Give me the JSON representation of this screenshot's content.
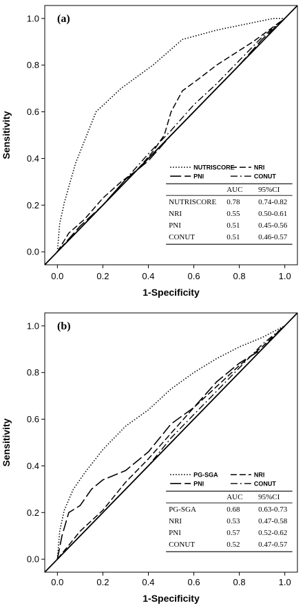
{
  "chart_data": [
    {
      "type": "line",
      "panel_label": "(a)",
      "xlabel": "1-Specificity",
      "ylabel": "Sensitivity",
      "xlim": [
        0,
        1
      ],
      "ylim": [
        0,
        1
      ],
      "xticks": [
        "0.0",
        "0.2",
        "0.4",
        "0.6",
        "0.8",
        "1.0"
      ],
      "yticks": [
        "0.0",
        "0.2",
        "0.4",
        "0.6",
        "0.8",
        "1.0"
      ],
      "grid": false,
      "diagonal_reference": true,
      "legend_position": "bottom-right",
      "series": [
        {
          "name": "NUTRISCORE",
          "style": "dotted",
          "x": [
            0,
            0.01,
            0.03,
            0.08,
            0.17,
            0.28,
            0.42,
            0.55,
            0.7,
            0.85,
            0.95,
            1.0
          ],
          "y": [
            0,
            0.12,
            0.21,
            0.38,
            0.6,
            0.7,
            0.8,
            0.91,
            0.95,
            0.98,
            1.0,
            1.0
          ]
        },
        {
          "name": "NRI",
          "style": "dashed",
          "x": [
            0,
            0.05,
            0.12,
            0.2,
            0.28,
            0.35,
            0.42,
            0.47,
            0.5,
            0.55,
            0.62,
            0.7,
            0.78,
            0.86,
            0.93,
            1.0
          ],
          "y": [
            0,
            0.08,
            0.14,
            0.23,
            0.3,
            0.35,
            0.43,
            0.5,
            0.6,
            0.69,
            0.74,
            0.8,
            0.85,
            0.9,
            0.95,
            1.0
          ]
        },
        {
          "name": "PNI",
          "style": "long-dash",
          "x": [
            0,
            0.1,
            0.2,
            0.3,
            0.4,
            0.5,
            0.6,
            0.7,
            0.8,
            0.9,
            1.0
          ],
          "y": [
            0,
            0.11,
            0.2,
            0.31,
            0.39,
            0.5,
            0.6,
            0.7,
            0.8,
            0.91,
            1.0
          ]
        },
        {
          "name": "CONUT",
          "style": "dash-dot",
          "x": [
            0,
            0.1,
            0.2,
            0.3,
            0.4,
            0.5,
            0.6,
            0.7,
            0.8,
            0.9,
            1.0
          ],
          "y": [
            0,
            0.1,
            0.2,
            0.31,
            0.42,
            0.52,
            0.63,
            0.72,
            0.82,
            0.92,
            1.0
          ]
        }
      ],
      "table": {
        "headers": [
          "",
          "AUC",
          "95%CI"
        ],
        "rows": [
          [
            "NUTRISCORE",
            "0.78",
            "0.74-0.82"
          ],
          [
            "NRI",
            "0.55",
            "0.50-0.61"
          ],
          [
            "PNI",
            "0.51",
            "0.45-0.56"
          ],
          [
            "CONUT",
            "0.51",
            "0.46-0.57"
          ]
        ]
      }
    },
    {
      "type": "line",
      "panel_label": "(b)",
      "xlabel": "1-Specificity",
      "ylabel": "Sensitivity",
      "xlim": [
        0,
        1
      ],
      "ylim": [
        0,
        1
      ],
      "xticks": [
        "0.0",
        "0.2",
        "0.4",
        "0.6",
        "0.8",
        "1.0"
      ],
      "yticks": [
        "0.0",
        "0.2",
        "0.4",
        "0.6",
        "0.8",
        "1.0"
      ],
      "grid": false,
      "diagonal_reference": true,
      "legend_position": "bottom-right",
      "series": [
        {
          "name": "PG-SGA",
          "style": "dotted",
          "x": [
            0,
            0.01,
            0.03,
            0.07,
            0.12,
            0.2,
            0.3,
            0.4,
            0.5,
            0.6,
            0.7,
            0.8,
            0.9,
            1.0
          ],
          "y": [
            0,
            0.12,
            0.21,
            0.3,
            0.37,
            0.47,
            0.57,
            0.64,
            0.73,
            0.8,
            0.86,
            0.91,
            0.95,
            1.0
          ]
        },
        {
          "name": "NRI",
          "style": "dashed",
          "x": [
            0,
            0.05,
            0.1,
            0.2,
            0.3,
            0.4,
            0.5,
            0.6,
            0.7,
            0.8,
            0.9,
            1.0
          ],
          "y": [
            0,
            0.06,
            0.12,
            0.21,
            0.33,
            0.43,
            0.54,
            0.65,
            0.74,
            0.83,
            0.91,
            1.0
          ]
        },
        {
          "name": "PNI",
          "style": "long-dash",
          "x": [
            0,
            0.02,
            0.05,
            0.1,
            0.15,
            0.2,
            0.3,
            0.4,
            0.5,
            0.6,
            0.7,
            0.8,
            0.9,
            1.0
          ],
          "y": [
            0,
            0.1,
            0.2,
            0.23,
            0.3,
            0.34,
            0.38,
            0.46,
            0.58,
            0.65,
            0.76,
            0.84,
            0.9,
            1.0
          ]
        },
        {
          "name": "CONUT",
          "style": "dash-dot",
          "x": [
            0,
            0.1,
            0.2,
            0.3,
            0.4,
            0.5,
            0.6,
            0.7,
            0.8,
            0.9,
            1.0
          ],
          "y": [
            0,
            0.1,
            0.2,
            0.3,
            0.4,
            0.52,
            0.62,
            0.72,
            0.82,
            0.92,
            1.0
          ]
        }
      ],
      "table": {
        "headers": [
          "",
          "AUC",
          "95%CI"
        ],
        "rows": [
          [
            "PG-SGA",
            "0.68",
            "0.63-0.73"
          ],
          [
            "NRI",
            "0.53",
            "0.47-0.58"
          ],
          [
            "PNI",
            "0.57",
            "0.52-0.62"
          ],
          [
            "CONUT",
            "0.52",
            "0.47-0.57"
          ]
        ]
      }
    }
  ]
}
